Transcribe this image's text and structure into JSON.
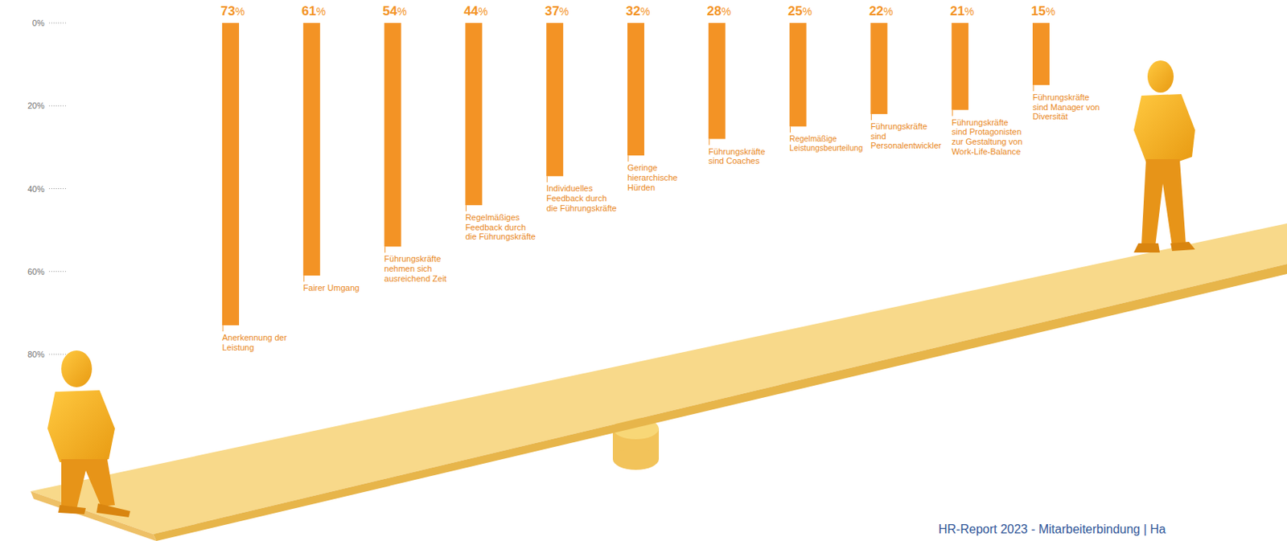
{
  "chart_data": {
    "type": "bar",
    "categories": [
      "Anerkennung der Leistung",
      "Fairer Umgang",
      "Führungskräfte nehmen sich ausreichend Zeit",
      "Regelmäßiges Feedback durch die Führungskräfte",
      "Individuelles Feedback durch die Führungskräfte",
      "Geringe hierarchische Hürden",
      "Führungskräfte sind Coaches",
      "Regelmäßige Leistungsbeurteilung",
      "Führungskräfte sind Personalentwickler",
      "Führungskräfte sind Protagonisten zur Gestaltung von Work-Life-Balance",
      "Führungskräfte sind Manager von Diversität"
    ],
    "values": [
      73,
      61,
      54,
      44,
      37,
      32,
      28,
      25,
      22,
      21,
      15
    ],
    "value_labels": [
      "73%",
      "61%",
      "54%",
      "44%",
      "37%",
      "32%",
      "28%",
      "25%",
      "22%",
      "21%",
      "15%"
    ],
    "color": "#f39325",
    "ylim": [
      0,
      80
    ],
    "yticks": [
      {
        "value": 0,
        "label": "0%"
      },
      {
        "value": 20,
        "label": "20%"
      },
      {
        "value": 40,
        "label": "40%"
      },
      {
        "value": 60,
        "label": "60%"
      },
      {
        "value": 80,
        "label": "80%"
      }
    ],
    "grid": false,
    "data_labels": true,
    "annotations": [
      "HR-Report 2023 - Mitarbeiterbindung | Ha"
    ]
  }
}
